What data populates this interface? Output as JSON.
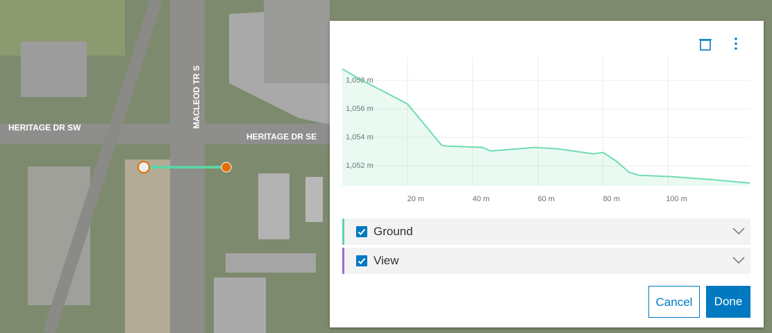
{
  "map": {
    "labels": [
      "HERITAGE DR SW",
      "HERITAGE DR SE",
      "MACLEOD TR S"
    ]
  },
  "chart_data": {
    "type": "line",
    "x": [
      0,
      5.7,
      20,
      30.5,
      32,
      43,
      45.5,
      59,
      66,
      77,
      80,
      84,
      88,
      91,
      101,
      113,
      125
    ],
    "values": [
      1058.8,
      1058.05,
      1056.35,
      1053.45,
      1053.4,
      1053.3,
      1053.05,
      1053.3,
      1053.2,
      1052.85,
      1052.95,
      1052.35,
      1051.55,
      1051.35,
      1051.25,
      1051.05,
      1050.8
    ],
    "color": "#6fdcb0",
    "xlim": [
      0,
      125
    ],
    "ylim": [
      1050.6,
      1059.6
    ],
    "xticks": [
      {
        "value": 20,
        "label": "20 m"
      },
      {
        "value": 40,
        "label": "40 m"
      },
      {
        "value": 60,
        "label": "60 m"
      },
      {
        "value": 80,
        "label": "80 m"
      },
      {
        "value": 100,
        "label": "100 m"
      }
    ],
    "yticks": [
      {
        "value": 1052,
        "label": "1,052 m"
      },
      {
        "value": 1054,
        "label": "1,054 m"
      },
      {
        "value": 1056,
        "label": "1,056 m"
      },
      {
        "value": 1058,
        "label": "1,058 m"
      }
    ],
    "grid": true
  },
  "panel": {
    "profiles": [
      {
        "name": "Ground",
        "color": "#5fd3a4",
        "checked": true
      },
      {
        "name": "View",
        "color": "#9b6dcf",
        "checked": true
      }
    ],
    "cancel": "Cancel",
    "done": "Done"
  }
}
